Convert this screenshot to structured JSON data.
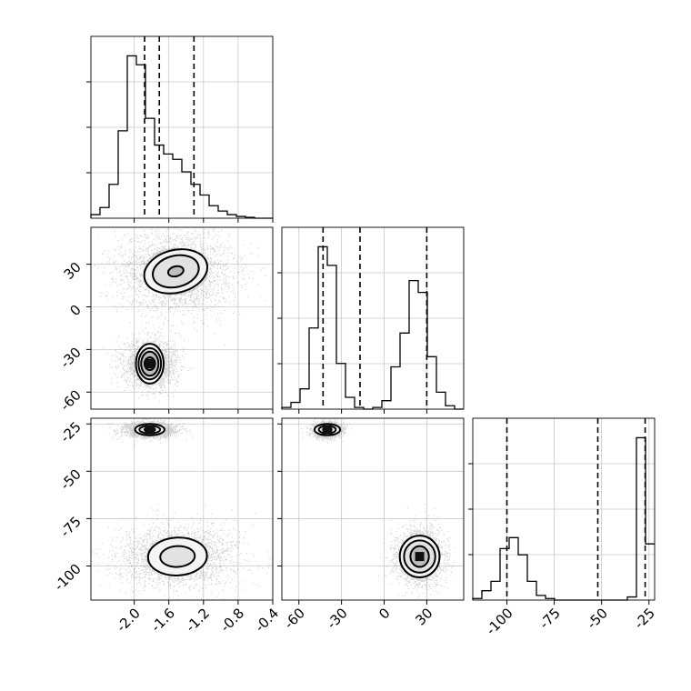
{
  "colors": {
    "line": "#000000",
    "grid": "#c8c8c8",
    "axes": "#000000",
    "background": "#ffffff",
    "scatter": "#000000"
  },
  "chart_data": {
    "type": "corner",
    "grid": true,
    "parameters": [
      {
        "range": [
          -2.5,
          -0.4
        ],
        "ticks": [
          -2.0,
          -1.6,
          -1.2,
          -0.8,
          -0.4
        ],
        "tick_labels": [
          "-2.0",
          "-1.6",
          "-1.2",
          "-0.8",
          "-0.4"
        ]
      },
      {
        "range": [
          -72,
          56
        ],
        "ticks": [
          -60,
          -30,
          0,
          30
        ],
        "tick_labels": [
          "-60",
          "-30",
          "0",
          "30"
        ]
      },
      {
        "range": [
          -118,
          -22
        ],
        "ticks": [
          -100,
          -75,
          -50,
          -25
        ],
        "tick_labels": [
          "-100",
          "-75",
          "-50",
          "-25"
        ]
      }
    ],
    "histograms": [
      {
        "parameter": 0,
        "bin_edges": [
          -2.5,
          -2.395,
          -2.29,
          -2.185,
          -2.08,
          -1.975,
          -1.87,
          -1.765,
          -1.66,
          -1.555,
          -1.45,
          -1.345,
          -1.24,
          -1.135,
          -1.03,
          -0.925,
          -0.82,
          -0.715,
          -0.61,
          -0.505,
          -0.4
        ],
        "counts": [
          0.02,
          0.06,
          0.19,
          0.49,
          0.91,
          0.86,
          0.56,
          0.41,
          0.36,
          0.33,
          0.26,
          0.19,
          0.13,
          0.07,
          0.04,
          0.02,
          0.01,
          0.005,
          0.0,
          0.0
        ],
        "quantiles": [
          -1.88,
          -1.71,
          -1.31
        ],
        "ytick_fractions": [
          0.25,
          0.5,
          0.75
        ]
      },
      {
        "parameter": 1,
        "bin_edges": [
          -72,
          -65.6,
          -59.2,
          -52.8,
          -46.4,
          -40,
          -33.6,
          -27.2,
          -20.8,
          -14.4,
          -8,
          -1.6,
          4.8,
          11.2,
          17.6,
          24,
          30.4,
          36.8,
          43.2,
          49.6,
          56
        ],
        "counts": [
          0.01,
          0.04,
          0.12,
          0.48,
          0.96,
          0.85,
          0.27,
          0.07,
          0.01,
          0.0,
          0.01,
          0.05,
          0.25,
          0.45,
          0.76,
          0.69,
          0.31,
          0.1,
          0.02,
          0.0
        ],
        "quantiles": [
          -43,
          -17,
          30
        ],
        "ytick_fractions": [
          0.25,
          0.5,
          0.75
        ]
      },
      {
        "parameter": 2,
        "bin_edges": [
          -118,
          -113.2,
          -108.4,
          -103.6,
          -98.8,
          -94,
          -89.2,
          -84.4,
          -79.6,
          -74.8,
          -70,
          -65.2,
          -60.4,
          -55.6,
          -50.8,
          -46,
          -41.2,
          -36.4,
          -31.6,
          -26.8,
          -22
        ],
        "counts": [
          0.01,
          0.06,
          0.12,
          0.33,
          0.4,
          0.29,
          0.12,
          0.03,
          0.01,
          0.0,
          0.0,
          0.0,
          0.0,
          0.0,
          0.0,
          0.0,
          0.0,
          0.02,
          1.04,
          0.36
        ],
        "quantiles": [
          -100,
          -52,
          -27
        ],
        "ytick_fractions": [
          0.25,
          0.5,
          0.75
        ]
      }
    ],
    "pair_plots": [
      {
        "x_param": 0,
        "y_param": 1,
        "clusters": [
          {
            "center": [
              -1.52,
              25
            ],
            "spread": [
              0.34,
              15
            ],
            "points": 2600,
            "contours": [
              {
                "rx": 0.37,
                "ry": 15,
                "angle": -14
              },
              {
                "rx": 0.27,
                "ry": 11,
                "angle": -14
              },
              {
                "rx": 0.09,
                "ry": 3.5,
                "angle": -14
              }
            ]
          },
          {
            "center": [
              -1.82,
              -40
            ],
            "spread": [
              0.15,
              8
            ],
            "points": 2200,
            "contours": [
              {
                "rx": 0.16,
                "ry": 14,
                "angle": 0
              },
              {
                "rx": 0.13,
                "ry": 11,
                "angle": 0
              },
              {
                "rx": 0.1,
                "ry": 8.5,
                "angle": 0
              },
              {
                "rx": 0.06,
                "ry": 4.5,
                "angle": 0
              }
            ]
          }
        ]
      },
      {
        "x_param": 0,
        "y_param": 2,
        "clusters": [
          {
            "center": [
              -1.5,
              -95
            ],
            "spread": [
              0.33,
              8
            ],
            "points": 2600,
            "contours": [
              {
                "rx": 0.34,
                "ry": 10,
                "angle": -3
              },
              {
                "rx": 0.2,
                "ry": 5.5,
                "angle": -3
              }
            ]
          },
          {
            "center": [
              -1.82,
              -28
            ],
            "spread": [
              0.15,
              2.0
            ],
            "points": 2000,
            "contours": [
              {
                "rx": 0.17,
                "ry": 3,
                "angle": 0
              },
              {
                "rx": 0.12,
                "ry": 2,
                "angle": 0
              },
              {
                "rx": 0.06,
                "ry": 1.2,
                "angle": 0
              }
            ]
          }
        ]
      },
      {
        "x_param": 1,
        "y_param": 2,
        "clusters": [
          {
            "center": [
              25,
              -95
            ],
            "spread": [
              8,
              7
            ],
            "points": 2600,
            "contours": [
              {
                "rx": 14,
                "ry": 11,
                "angle": 0
              },
              {
                "rx": 11,
                "ry": 8.5,
                "angle": 0
              },
              {
                "rx": 6.5,
                "ry": 5.5,
                "angle": 0
              }
            ]
          },
          {
            "center": [
              -40,
              -28
            ],
            "spread": [
              5,
              2.0
            ],
            "points": 2000,
            "contours": [
              {
                "rx": 9,
                "ry": 3,
                "angle": 0
              },
              {
                "rx": 6,
                "ry": 2,
                "angle": 0
              },
              {
                "rx": 3,
                "ry": 1.2,
                "angle": 0
              }
            ]
          }
        ]
      }
    ]
  }
}
